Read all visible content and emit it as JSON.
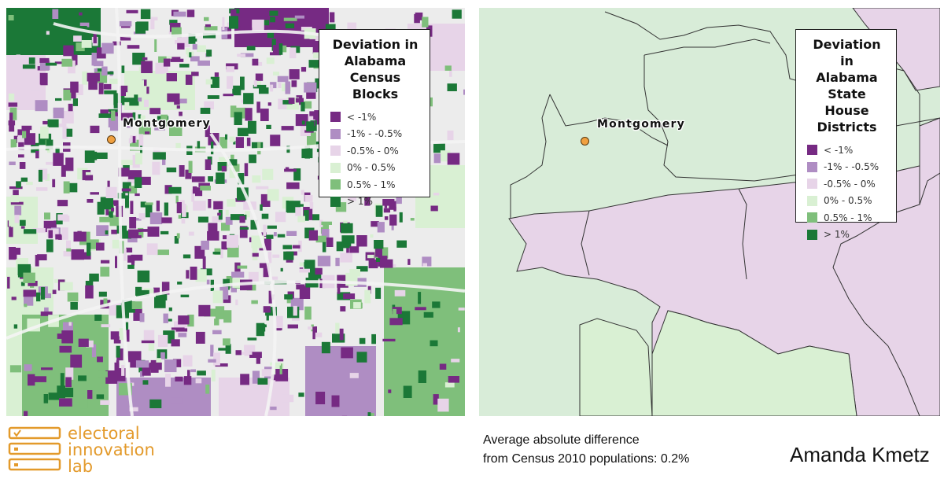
{
  "left_map": {
    "legend": {
      "title_lines": [
        "Deviation in",
        "Alabama",
        "Census Blocks"
      ],
      "items": [
        {
          "label": "< -1%",
          "color": "#762a83"
        },
        {
          "label": "-1%  -  -0.5%",
          "color": "#af8dc3"
        },
        {
          "label": "-0.5%  -  0%",
          "color": "#e7d4e8"
        },
        {
          "label": "0%  -  0.5%",
          "color": "#d9f0d3"
        },
        {
          "label": "0.5%  -  1%",
          "color": "#7fbf7b"
        },
        {
          "label": "> 1%",
          "color": "#1b7837"
        }
      ]
    },
    "city_label": "Montgomery"
  },
  "right_map": {
    "legend": {
      "title_lines": [
        "Deviation in",
        "Alabama",
        "State House",
        "Districts"
      ],
      "items": [
        {
          "label": "< -1%",
          "color": "#762a83"
        },
        {
          "label": "-1%  -  -0.5%",
          "color": "#af8dc3"
        },
        {
          "label": "-0.5%  -  0%",
          "color": "#e7d4e8"
        },
        {
          "label": "0%  -  0.5%",
          "color": "#d9f0d3"
        },
        {
          "label": "0.5%  -  1%",
          "color": "#7fbf7b"
        },
        {
          "label": "> 1%",
          "color": "#1b7837"
        }
      ]
    },
    "city_label": "Montgomery"
  },
  "logo": {
    "lines": [
      "electoral",
      "innovation",
      "lab"
    ],
    "color": "#e39a2b"
  },
  "footer": {
    "average_line1": "Average absolute difference",
    "average_line2": "from Census 2010 populations: 0.2%",
    "author": "Amanda Kmetz"
  }
}
